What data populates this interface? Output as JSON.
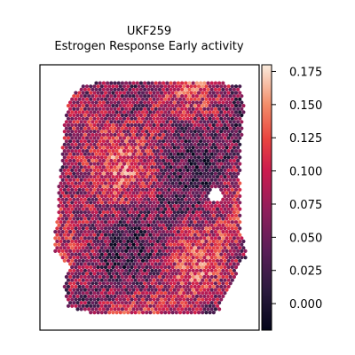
{
  "chart_data": {
    "type": "scatter",
    "title_line1": "UKF259",
    "title_line2": "Estrogen Response Early activity",
    "xlabel": "",
    "ylabel": "",
    "colormap": "rocket",
    "colorbar": {
      "vmin": -0.02,
      "vmax": 0.18,
      "ticks": [
        0.0,
        0.025,
        0.05,
        0.075,
        0.1,
        0.125,
        0.15,
        0.175
      ],
      "tick_labels": [
        "0.000",
        "0.025",
        "0.050",
        "0.075",
        "0.100",
        "0.125",
        "0.150",
        "0.175"
      ],
      "position": "right"
    },
    "axis_ticks_shown": false,
    "grid": false,
    "value_summary": {
      "typical_min": 0.0,
      "typical_max": 0.15,
      "mean_approx": 0.075
    }
  }
}
